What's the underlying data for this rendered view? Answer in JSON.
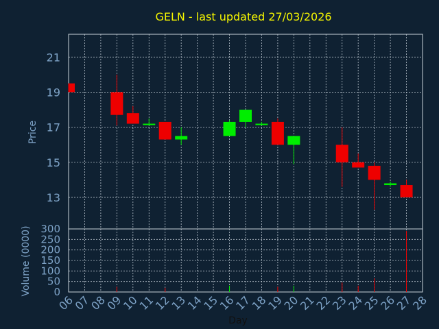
{
  "chart_data": {
    "type": "candlestick",
    "title": "GELN - last updated 27/03/2026",
    "xlabel": "Day",
    "price_panel": {
      "ylabel": "Price",
      "yticks": [
        13,
        15,
        17,
        19,
        21
      ],
      "ylim": [
        11.2,
        22.3
      ]
    },
    "volume_panel": {
      "ylabel": "Volume (0000)",
      "yticks": [
        0,
        50,
        100,
        150,
        200,
        250,
        300
      ],
      "ylim": [
        0,
        300
      ]
    },
    "x_ticks": [
      "06",
      "07",
      "08",
      "09",
      "10",
      "11",
      "12",
      "13",
      "14",
      "15",
      "16",
      "17",
      "18",
      "19",
      "20",
      "21",
      "22",
      "23",
      "24",
      "25",
      "26",
      "27",
      "28"
    ],
    "candles": [
      {
        "day": "06",
        "open": 19.5,
        "high": 19.5,
        "low": 19.0,
        "close": 19.0,
        "volume": 0
      },
      {
        "day": "09",
        "open": 19.0,
        "high": 20.0,
        "low": 17.1,
        "close": 17.7,
        "volume": 25
      },
      {
        "day": "10",
        "open": 17.8,
        "high": 18.2,
        "low": 17.2,
        "close": 17.2,
        "volume": 0
      },
      {
        "day": "11",
        "open": 17.2,
        "high": 17.5,
        "low": 17.1,
        "close": 17.2,
        "volume": 0
      },
      {
        "day": "12",
        "open": 17.3,
        "high": 17.3,
        "low": 16.3,
        "close": 16.3,
        "volume": 20
      },
      {
        "day": "13",
        "open": 16.3,
        "high": 17.0,
        "low": 16.0,
        "close": 16.5,
        "volume": 0
      },
      {
        "day": "16",
        "open": 16.5,
        "high": 17.4,
        "low": 16.5,
        "close": 17.3,
        "volume": 30
      },
      {
        "day": "17",
        "open": 17.3,
        "high": 18.0,
        "low": 17.0,
        "close": 18.0,
        "volume": 0
      },
      {
        "day": "18",
        "open": 17.2,
        "high": 17.3,
        "low": 17.1,
        "close": 17.2,
        "volume": 0
      },
      {
        "day": "19",
        "open": 17.3,
        "high": 17.5,
        "low": 16.0,
        "close": 16.0,
        "volume": 25
      },
      {
        "day": "20",
        "open": 16.0,
        "high": 16.5,
        "low": 14.9,
        "close": 16.5,
        "volume": 30
      },
      {
        "day": "23",
        "open": 16.0,
        "high": 17.0,
        "low": 13.6,
        "close": 15.0,
        "volume": 45
      },
      {
        "day": "24",
        "open": 15.0,
        "high": 15.5,
        "low": 14.7,
        "close": 14.7,
        "volume": 30
      },
      {
        "day": "25",
        "open": 14.8,
        "high": 15.0,
        "low": 12.3,
        "close": 14.0,
        "volume": 65
      },
      {
        "day": "26",
        "open": 13.7,
        "high": 13.9,
        "low": 13.6,
        "close": 13.8,
        "volume": 0
      },
      {
        "day": "27",
        "open": 13.7,
        "high": 14.0,
        "low": 13.0,
        "close": 13.0,
        "volume": 290
      }
    ],
    "grid": true,
    "colors": {
      "background": "#0f2132",
      "grid": "#b8c3cc",
      "axis_text": "#7ea3c7",
      "title": "#f5f500",
      "up": "#00ee00",
      "down": "#ee0000"
    }
  }
}
